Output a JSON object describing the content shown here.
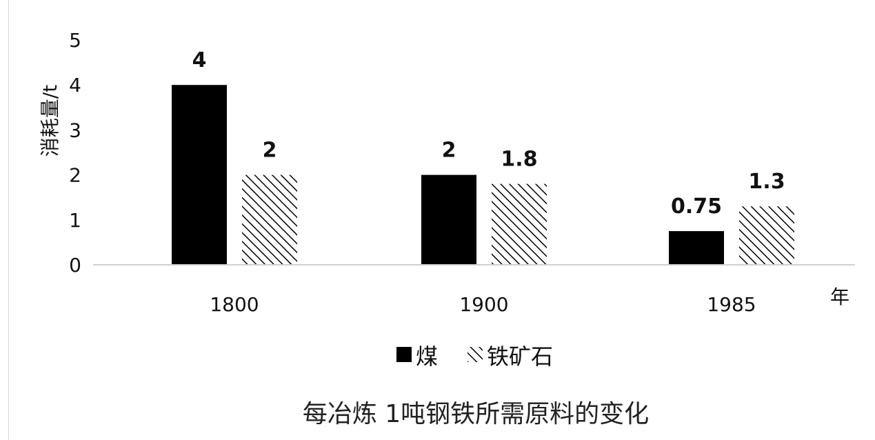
{
  "chart_data": {
    "type": "bar",
    "title": "每冶炼 1吨钢铁所需原料的变化",
    "ylabel": "消耗量/t",
    "xlabel": "年",
    "categories": [
      "1800",
      "1900",
      "1985"
    ],
    "series": [
      {
        "name": "煤",
        "values": [
          4,
          2,
          0.75
        ],
        "pattern": "solid",
        "color": "#000000"
      },
      {
        "name": "铁矿石",
        "values": [
          2,
          1.8,
          1.3
        ],
        "pattern": "diagonal-hatch",
        "color": "#000000"
      }
    ],
    "data_labels": [
      [
        "4",
        "2",
        "0.75"
      ],
      [
        "2",
        "1.8",
        "1.3"
      ]
    ],
    "ylim": [
      0,
      5
    ],
    "yticks": [
      "0",
      "1",
      "2",
      "3",
      "4",
      "5"
    ],
    "grid": false,
    "legend_position": "bottom"
  }
}
